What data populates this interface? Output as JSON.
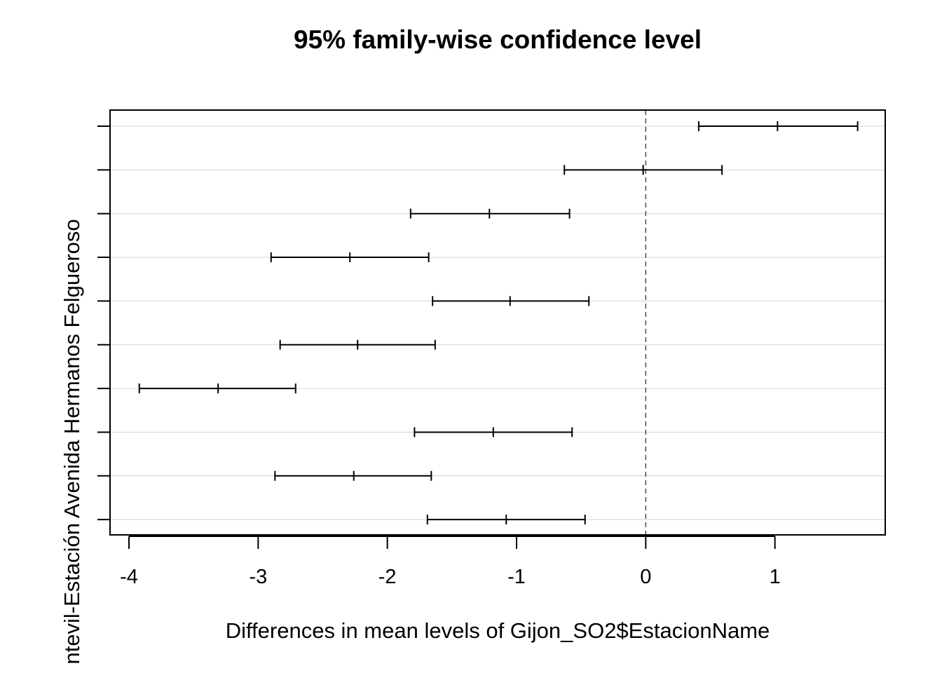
{
  "chart_data": {
    "type": "interval",
    "title": "95% family-wise confidence level",
    "xlabel": "Differences in mean levels of Gijon_SO2$EstacionName",
    "ylabel": "ntevil-Estación Avenida Hermanos Felgueroso",
    "xlim": [
      -4.14,
      1.86
    ],
    "xticks": [
      -4,
      -3,
      -2,
      -1,
      0,
      1
    ],
    "xtick_labels": [
      "-4",
      "-3",
      "-2",
      "-1",
      "0",
      "1"
    ],
    "reference_line": 0,
    "grid": true,
    "intervals": [
      {
        "lwr": 0.41,
        "diff": 1.02,
        "upr": 1.64
      },
      {
        "lwr": -0.63,
        "diff": -0.02,
        "upr": 0.59
      },
      {
        "lwr": -1.82,
        "diff": -1.21,
        "upr": -0.59
      },
      {
        "lwr": -2.9,
        "diff": -2.29,
        "upr": -1.68
      },
      {
        "lwr": -1.65,
        "diff": -1.05,
        "upr": -0.44
      },
      {
        "lwr": -2.83,
        "diff": -2.23,
        "upr": -1.63
      },
      {
        "lwr": -3.92,
        "diff": -3.31,
        "upr": -2.71
      },
      {
        "lwr": -1.79,
        "diff": -1.18,
        "upr": -0.57
      },
      {
        "lwr": -2.87,
        "diff": -2.26,
        "upr": -1.66
      },
      {
        "lwr": -1.69,
        "diff": -1.08,
        "upr": -0.47
      }
    ]
  }
}
